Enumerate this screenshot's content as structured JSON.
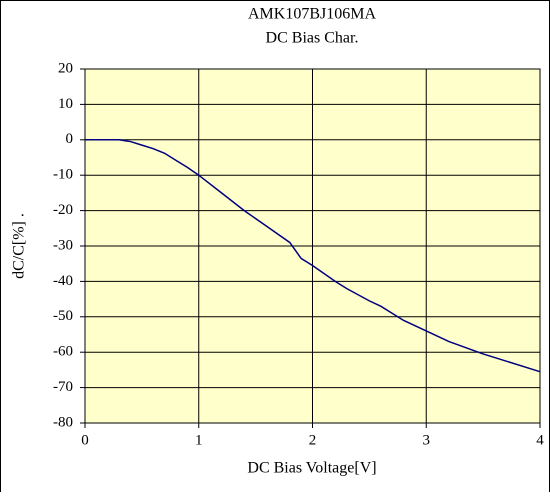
{
  "chart_data": {
    "type": "line",
    "title": "AMK107BJ106MA",
    "subtitle": "DC Bias Char.",
    "x_label": "DC Bias Voltage[V]",
    "y_label": "dC/C[%] .",
    "x": [
      0,
      0.3,
      0.4,
      0.5,
      0.6,
      0.7,
      0.8,
      0.9,
      1.0,
      1.2,
      1.4,
      1.6,
      1.8,
      1.9,
      2.0,
      2.2,
      2.3,
      2.5,
      2.6,
      2.8,
      3.0,
      3.2,
      3.5,
      4.0
    ],
    "series": [
      {
        "color": "#000080",
        "values": [
          0,
          0,
          -0.5,
          -1.5,
          -2.5,
          -3.8,
          -5.8,
          -7.8,
          -10,
          -15,
          -20,
          -24.5,
          -29,
          -33.5,
          -35.5,
          -40,
          -42,
          -45.5,
          -47,
          -51,
          -54,
          -57,
          -60.5,
          -65.5
        ]
      }
    ],
    "xlim": [
      0,
      4
    ],
    "xticks": [
      0,
      1,
      2,
      3,
      4
    ],
    "ylim": [
      -80,
      20
    ],
    "yticks": [
      -80,
      -70,
      -60,
      -50,
      -40,
      -30,
      -20,
      -10,
      0,
      10,
      20
    ],
    "grid": true,
    "plot_background": "#ffffcc"
  }
}
